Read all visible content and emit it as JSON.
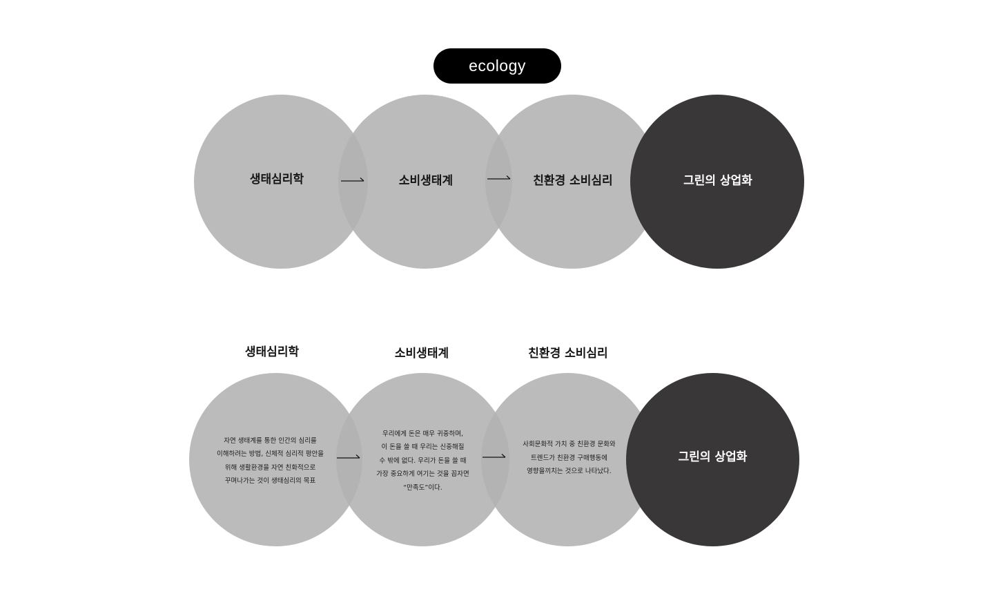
{
  "header": {
    "badge_label": "ecology"
  },
  "top_row": {
    "circles": [
      {
        "label": "생태심리학"
      },
      {
        "label": "소비생태계"
      },
      {
        "label": "친환경 소비심리"
      },
      {
        "label": "그린의 상업화"
      }
    ]
  },
  "bottom_row": {
    "headings": [
      "생태심리학",
      "소비생태계",
      "친환경 소비심리"
    ],
    "circles": [
      {
        "text": "자연 생태계를 통한 인간의 심리를\n이해하려는 방법, 신체적 심리적 평안을\n위해 생활환경을 자연 친화적으로\n꾸며나가는 것이 생태심리의 목표"
      },
      {
        "text": "우리에게 돈은 매우 귀중하며,\n이 돈을 쓸 때 우리는 신중해질\n수 밖에 없다. 우리가 돈을 쓸 때\n가장 중요하게 여기는 것을 꼽자면\n“만족도”이다."
      },
      {
        "text": "사회문화적 가치 중 친환경 문화와\n트렌드가 친환경 구매행동에\n영향을끼치는 것으로 나타났다."
      },
      {
        "text": "그린의 상업화"
      }
    ]
  },
  "colors": {
    "light_circle": "#b2b2b2",
    "dark_circle": "#3a3738",
    "badge_background": "#000000",
    "badge_text": "#ffffff"
  }
}
